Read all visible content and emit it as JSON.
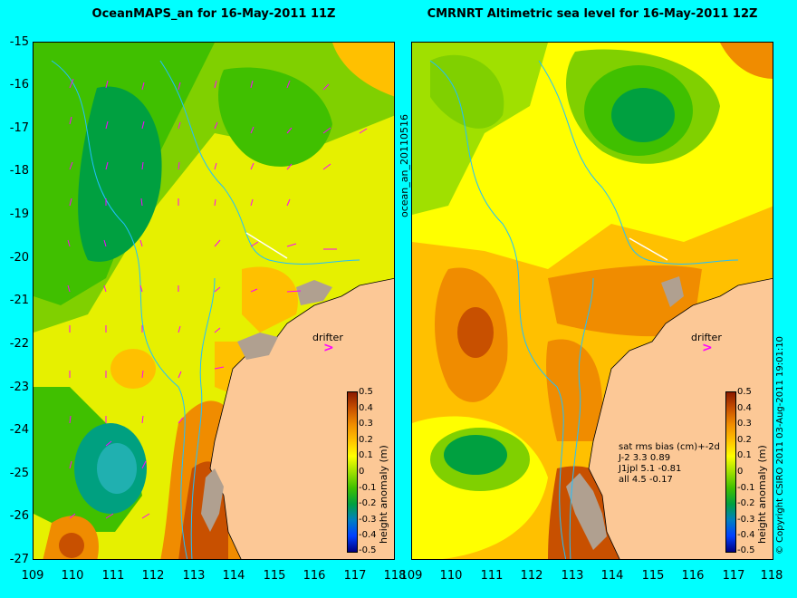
{
  "left_panel": {
    "title": "OceanMAPS_an for 16-May-2011 11Z"
  },
  "right_panel": {
    "title": "CMRNRT Altimetric sea level  for 16-May-2011 12Z"
  },
  "y_ticks": [
    "-15",
    "-16",
    "-17",
    "-18",
    "-19",
    "-20",
    "-21",
    "-22",
    "-23",
    "-24",
    "-25",
    "-26",
    "-27"
  ],
  "x_ticks_left": [
    "109",
    "110",
    "111",
    "112",
    "113",
    "114",
    "115",
    "116",
    "117",
    "118"
  ],
  "x_ticks_right": [
    "109",
    "110",
    "111",
    "112",
    "113",
    "114",
    "115",
    "116",
    "117",
    "118"
  ],
  "colorbar": {
    "label": "height anomaly (m)",
    "ticks": [
      "0.5",
      "0.4",
      "0.3",
      "0.2",
      "0.1",
      "0",
      "-0.1",
      "-0.2",
      "-0.3",
      "-0.4",
      "-0.5"
    ],
    "colors": [
      "#8b1a00",
      "#c85000",
      "#f08c00",
      "#ffc000",
      "#ffff00",
      "#a0e000",
      "#40c000",
      "#00a040",
      "#0080c0",
      "#0040ff",
      "#000080"
    ]
  },
  "file_label": "ocean_an_20110516",
  "copyright": "© Copyright CSIRO 2011  03-Aug-2011 19:01:10",
  "drifter_label": "drifter",
  "stats": {
    "header": "sat rms bias (cm)+-2d",
    "lines": [
      "J-2   3.3 0.89",
      "J1jpl 5.1 -0.81",
      "all 4.5 -0.17"
    ]
  },
  "colors": {
    "background": "#00ffff",
    "land": "#fcc896",
    "vector": "#ff00ff"
  }
}
